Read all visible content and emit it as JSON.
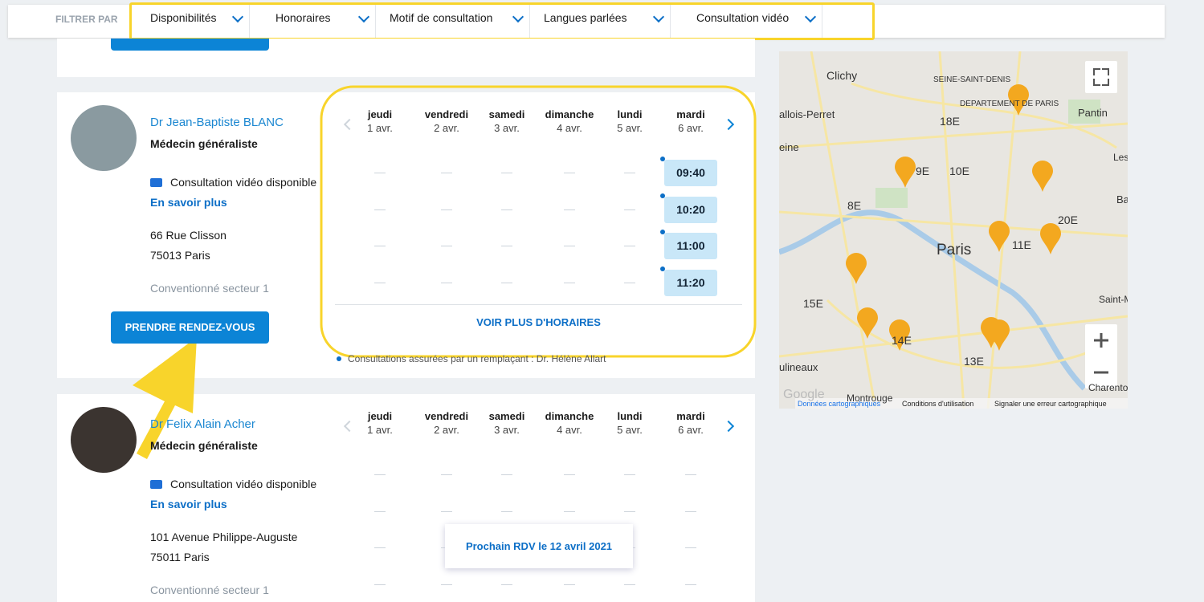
{
  "filter": {
    "label": "FILTRER PAR",
    "options": [
      "Disponibilités",
      "Honoraires",
      "Motif de consultation",
      "Langues parlées",
      "Consultation vidéo"
    ]
  },
  "calendar": {
    "days": [
      {
        "day": "jeudi",
        "date": "1 avr."
      },
      {
        "day": "vendredi",
        "date": "2 avr."
      },
      {
        "day": "samedi",
        "date": "3 avr."
      },
      {
        "day": "dimanche",
        "date": "4 avr."
      },
      {
        "day": "lundi",
        "date": "5 avr."
      },
      {
        "day": "mardi",
        "date": "6 avr."
      }
    ]
  },
  "doctors": [
    {
      "name": "Dr Jean-Baptiste BLANC",
      "specialty": "Médecin généraliste",
      "video": "Consultation vidéo disponible",
      "more": "En savoir plus",
      "address": [
        "66 Rue Clisson",
        "75013 Paris"
      ],
      "sector": "Conventionné secteur 1",
      "button": "PRENDRE RENDEZ-VOUS",
      "slots": [
        "09:40",
        "10:20",
        "11:00",
        "11:20"
      ],
      "more_hours": "VOIR PLUS D'HORAIRES",
      "note": "Consultations assurées par un remplaçant : Dr. Hélène Allart"
    },
    {
      "name": "Dr Felix Alain Acher",
      "specialty": "Médecin généraliste",
      "video": "Consultation vidéo disponible",
      "more": "En savoir plus",
      "address": [
        "101 Avenue Philippe-Auguste",
        "75011 Paris"
      ],
      "sector": "Conventionné secteur 1",
      "next": "Prochain RDV le 12 avril 2021"
    }
  ],
  "map": {
    "labels": [
      "Clichy",
      "SEINE-SAINT-DENIS",
      "DÉPARTEMENT DE PARIS",
      "18E",
      "Pantin",
      "9E",
      "10E",
      "8E",
      "20E",
      "Paris",
      "11E",
      "15E",
      "14E",
      "13E",
      "Saint-Ma",
      "Charenton-le",
      "Montrouge",
      "allois-Perret",
      "eine",
      "Bag",
      "Les Li",
      "ulineaux"
    ],
    "footer": [
      "Google",
      "Données cartographiques",
      "Conditions d'utilisation",
      "Signaler une erreur cartographique"
    ]
  }
}
